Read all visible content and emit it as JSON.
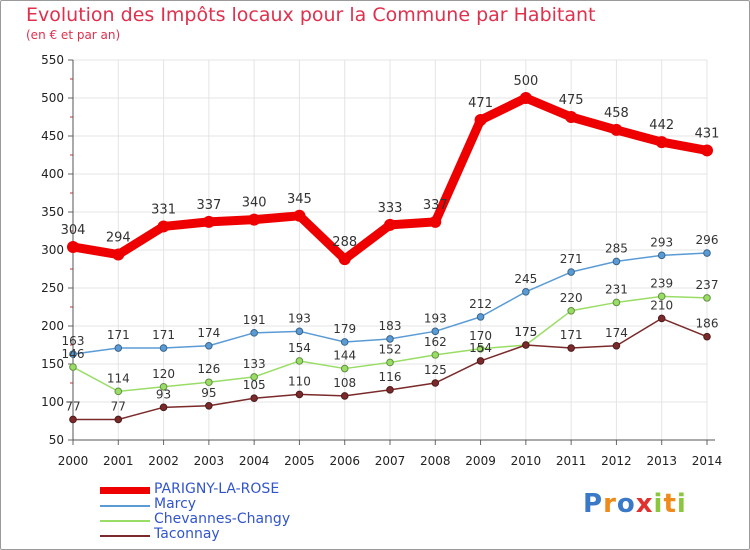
{
  "chart_data": {
    "type": "line",
    "title": "Evolution des Impôts locaux pour la Commune par Habitant",
    "subtitle": "(en € et par an)",
    "x": [
      "2000",
      "2001",
      "2002",
      "2003",
      "2004",
      "2005",
      "2006",
      "2007",
      "2008",
      "2009",
      "2010",
      "2011",
      "2012",
      "2013",
      "2014"
    ],
    "ylim": [
      50,
      550
    ],
    "yticks": [
      50,
      100,
      150,
      200,
      250,
      300,
      350,
      400,
      450,
      500,
      550
    ],
    "grid": true,
    "legend_position": "bottom-left",
    "series": [
      {
        "name": "PARIGNY-LA-ROSE",
        "color": "#ee0000",
        "highlight": true,
        "values": [
          304,
          294,
          331,
          337,
          340,
          345,
          288,
          333,
          337,
          471,
          500,
          475,
          458,
          442,
          431
        ]
      },
      {
        "name": "Marcy",
        "color": "#5b9bd5",
        "values": [
          163,
          171,
          171,
          174,
          191,
          193,
          179,
          183,
          193,
          212,
          245,
          271,
          285,
          293,
          296
        ]
      },
      {
        "name": "Chevannes-Changy",
        "color": "#99dd66",
        "values": [
          146,
          114,
          120,
          126,
          133,
          154,
          144,
          152,
          162,
          170,
          175,
          220,
          231,
          239,
          237
        ]
      },
      {
        "name": "Taconnay",
        "color": "#7a2a2a",
        "values": [
          77,
          77,
          93,
          95,
          105,
          110,
          108,
          116,
          125,
          154,
          175,
          171,
          174,
          210,
          186
        ]
      }
    ]
  },
  "logo": {
    "text": "Proxiti"
  }
}
